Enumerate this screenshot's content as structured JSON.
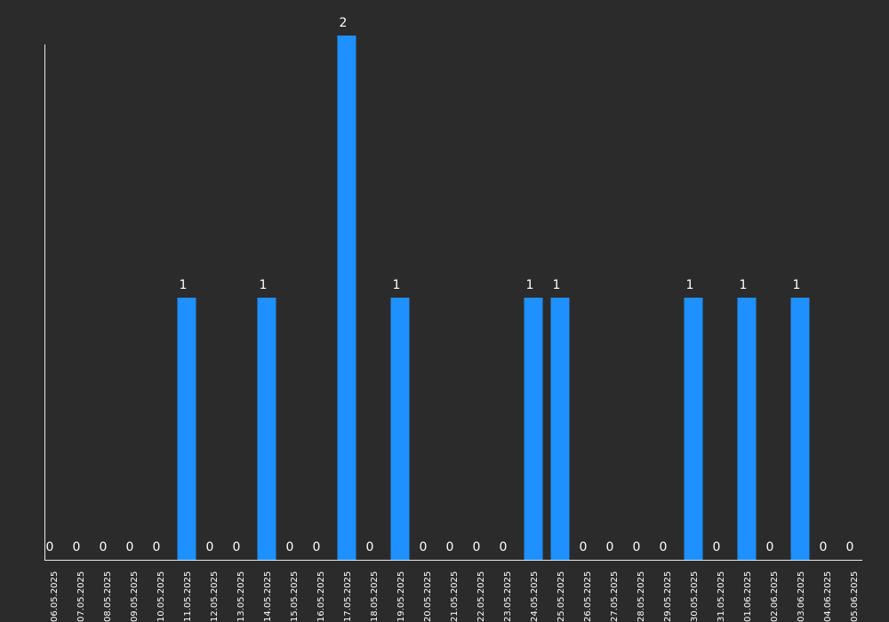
{
  "chart_data": {
    "type": "bar",
    "categories": [
      "06.05.2025",
      "07.05.2025",
      "08.05.2025",
      "09.05.2025",
      "10.05.2025",
      "11.05.2025",
      "12.05.2025",
      "13.05.2025",
      "14.05.2025",
      "15.05.2025",
      "16.05.2025",
      "17.05.2025",
      "18.05.2025",
      "19.05.2025",
      "20.05.2025",
      "21.05.2025",
      "22.05.2025",
      "23.05.2025",
      "24.05.2025",
      "25.05.2025",
      "26.05.2025",
      "27.05.2025",
      "28.05.2025",
      "29.05.2025",
      "30.05.2025",
      "31.05.2025",
      "01.06.2025",
      "02.06.2025",
      "03.06.2025",
      "04.06.2025",
      "05.06.2025"
    ],
    "values": [
      0,
      0,
      0,
      0,
      0,
      1,
      0,
      0,
      1,
      0,
      0,
      2,
      0,
      1,
      0,
      0,
      0,
      0,
      1,
      1,
      0,
      0,
      0,
      0,
      1,
      0,
      1,
      0,
      1,
      0,
      0
    ],
    "ylim": [
      0,
      2
    ],
    "grid": false,
    "legend": "none",
    "colors": {
      "background": "#2b2b2b",
      "bar": "#1e90ff",
      "axis": "#e8e8e8",
      "text": "#ffffff"
    }
  }
}
